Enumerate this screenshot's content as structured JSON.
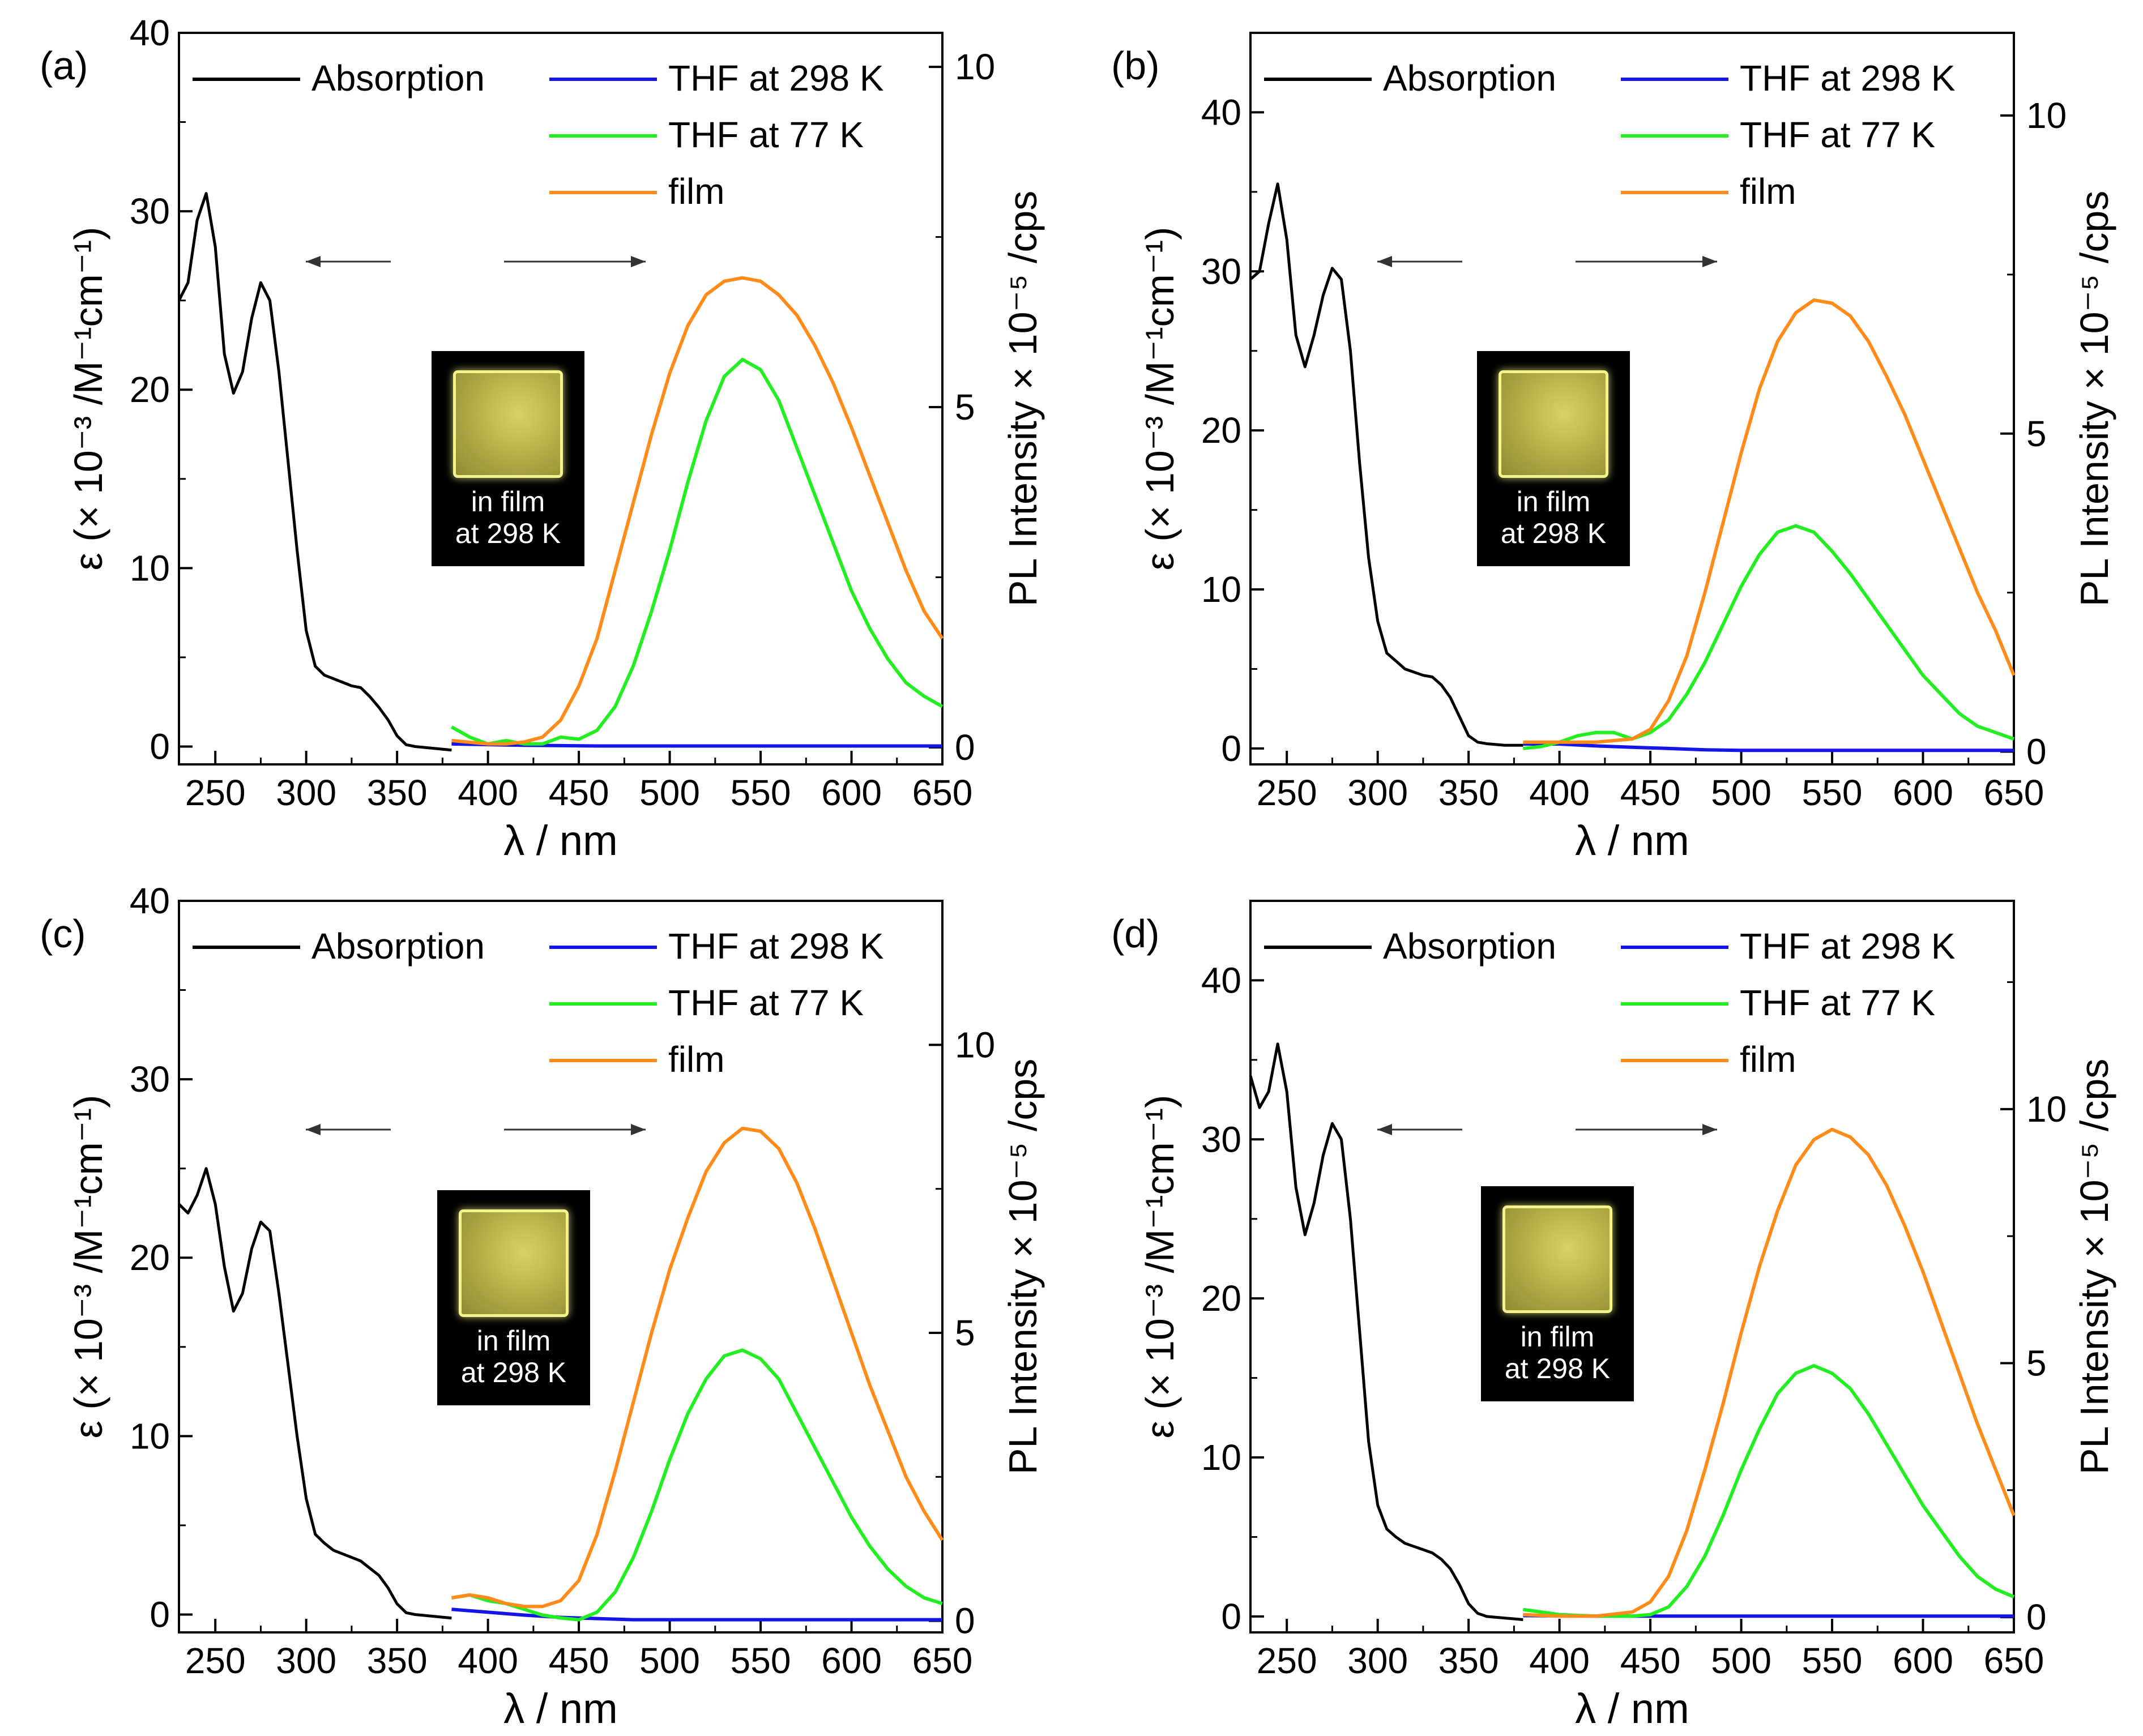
{
  "chart_data": [
    {
      "type": "line",
      "panel_label": "(a)",
      "xlabel": "λ / nm",
      "ylabel_left": "ε (× 10⁻³ /M⁻¹cm⁻¹)",
      "ylabel_right": "PL Intensity × 10⁻⁵ /cps",
      "xlim": [
        230,
        650
      ],
      "ylim_left": [
        -1,
        40
      ],
      "ylim_right": [
        -0.25,
        10.5
      ],
      "x_ticks": [
        250,
        300,
        350,
        400,
        450,
        500,
        550,
        600,
        650
      ],
      "y_left_ticks": [
        0,
        10,
        20,
        30,
        40
      ],
      "y_right_ticks": [
        0,
        5,
        10
      ],
      "legend": [
        "Absorption",
        "THF at 298 K",
        "THF at 77 K",
        "film"
      ],
      "inset_text": [
        "in film",
        "at 298 K"
      ],
      "series": [
        {
          "name": "Absorption",
          "axis": "left",
          "color": "#000000",
          "x": [
            230,
            235,
            240,
            245,
            250,
            255,
            260,
            265,
            270,
            275,
            280,
            285,
            290,
            295,
            300,
            305,
            310,
            315,
            320,
            325,
            330,
            335,
            340,
            345,
            350,
            355,
            360,
            370,
            380
          ],
          "y": [
            25,
            26,
            29.5,
            31,
            28,
            22,
            19.8,
            21,
            24,
            26,
            25,
            21,
            16,
            11,
            6.5,
            4.5,
            4,
            3.8,
            3.6,
            3.4,
            3.3,
            2.8,
            2.2,
            1.5,
            0.6,
            0.1,
            0,
            -0.1,
            -0.2
          ]
        },
        {
          "name": "THF at 298 K",
          "axis": "right",
          "color": "#1515e8",
          "x": [
            380,
            420,
            460,
            500,
            550,
            600,
            650
          ],
          "y": [
            0.05,
            0.03,
            0.02,
            0.02,
            0.02,
            0.02,
            0.02
          ]
        },
        {
          "name": "THF at 77 K",
          "axis": "right",
          "color": "#22ee22",
          "x": [
            380,
            390,
            400,
            410,
            420,
            430,
            440,
            450,
            460,
            470,
            480,
            490,
            500,
            510,
            520,
            530,
            540,
            550,
            560,
            570,
            580,
            590,
            600,
            610,
            620,
            630,
            640,
            650
          ],
          "y": [
            0.3,
            0.15,
            0.05,
            0.1,
            0.05,
            0.05,
            0.15,
            0.12,
            0.25,
            0.6,
            1.2,
            2,
            2.9,
            3.9,
            4.8,
            5.45,
            5.7,
            5.55,
            5.1,
            4.4,
            3.7,
            3.0,
            2.3,
            1.75,
            1.3,
            0.95,
            0.75,
            0.6
          ]
        },
        {
          "name": "film",
          "axis": "right",
          "color": "#ff8c1a",
          "x": [
            380,
            400,
            410,
            420,
            430,
            440,
            450,
            460,
            470,
            480,
            490,
            500,
            510,
            520,
            530,
            540,
            550,
            560,
            570,
            580,
            590,
            600,
            610,
            620,
            630,
            640,
            650
          ],
          "y": [
            0.1,
            0.05,
            0.05,
            0.08,
            0.15,
            0.4,
            0.9,
            1.6,
            2.6,
            3.6,
            4.6,
            5.5,
            6.2,
            6.65,
            6.85,
            6.9,
            6.85,
            6.65,
            6.35,
            5.9,
            5.35,
            4.7,
            4.0,
            3.3,
            2.6,
            2.0,
            1.6
          ]
        }
      ]
    },
    {
      "type": "line",
      "panel_label": "(b)",
      "xlabel": "λ / nm",
      "ylabel_left": "ε (× 10⁻³ /M⁻¹cm⁻¹)",
      "ylabel_right": "PL Intensity × 10⁻⁵ /cps",
      "xlim": [
        230,
        650
      ],
      "ylim_left": [
        -1,
        45
      ],
      "ylim_right": [
        -0.2,
        11.3
      ],
      "x_ticks": [
        250,
        300,
        350,
        400,
        450,
        500,
        550,
        600,
        650
      ],
      "y_left_ticks": [
        0,
        10,
        20,
        30,
        40
      ],
      "y_right_ticks": [
        0,
        5,
        10
      ],
      "legend": [
        "Absorption",
        "THF at 298 K",
        "THF at 77 K",
        "film"
      ],
      "inset_text": [
        "in film",
        "at 298 K"
      ],
      "series": [
        {
          "name": "Absorption",
          "axis": "left",
          "color": "#000000",
          "x": [
            230,
            235,
            240,
            245,
            250,
            255,
            260,
            265,
            270,
            275,
            280,
            285,
            290,
            295,
            300,
            305,
            310,
            315,
            320,
            325,
            330,
            335,
            340,
            345,
            350,
            355,
            360,
            370,
            380
          ],
          "y": [
            29.5,
            30,
            33,
            35.5,
            32,
            26,
            24,
            26,
            28.5,
            30.2,
            29.5,
            25,
            18,
            12,
            8,
            6,
            5.5,
            5,
            4.8,
            4.6,
            4.5,
            4,
            3.2,
            2,
            0.8,
            0.4,
            0.3,
            0.2,
            0.2
          ]
        },
        {
          "name": "THF at 298 K",
          "axis": "right",
          "color": "#1515e8",
          "x": [
            380,
            400,
            420,
            440,
            460,
            480,
            500,
            550,
            600,
            650
          ],
          "y": [
            0.12,
            0.12,
            0.09,
            0.07,
            0.05,
            0.03,
            0.02,
            0.02,
            0.02,
            0.02
          ]
        },
        {
          "name": "THF at 77 K",
          "axis": "right",
          "color": "#22ee22",
          "x": [
            380,
            390,
            400,
            410,
            420,
            430,
            440,
            450,
            460,
            470,
            480,
            490,
            500,
            510,
            520,
            530,
            540,
            550,
            560,
            570,
            580,
            590,
            600,
            610,
            620,
            630,
            640,
            650
          ],
          "y": [
            0.05,
            0.08,
            0.15,
            0.25,
            0.3,
            0.3,
            0.2,
            0.3,
            0.5,
            0.9,
            1.4,
            2.0,
            2.6,
            3.1,
            3.45,
            3.55,
            3.45,
            3.15,
            2.8,
            2.4,
            2.0,
            1.6,
            1.2,
            0.9,
            0.6,
            0.4,
            0.3,
            0.2
          ]
        },
        {
          "name": "film",
          "axis": "right",
          "color": "#ff8c1a",
          "x": [
            380,
            400,
            420,
            440,
            450,
            460,
            470,
            480,
            490,
            500,
            510,
            520,
            530,
            540,
            550,
            560,
            570,
            580,
            590,
            600,
            610,
            620,
            630,
            640,
            650
          ],
          "y": [
            0.15,
            0.15,
            0.15,
            0.2,
            0.35,
            0.8,
            1.5,
            2.5,
            3.6,
            4.7,
            5.7,
            6.45,
            6.9,
            7.1,
            7.05,
            6.85,
            6.45,
            5.9,
            5.3,
            4.6,
            3.9,
            3.2,
            2.5,
            1.9,
            1.2
          ]
        }
      ]
    },
    {
      "type": "line",
      "panel_label": "(c)",
      "xlabel": "λ / nm",
      "ylabel_left": "ε (× 10⁻³ /M⁻¹cm⁻¹)",
      "ylabel_right": "PL Intensity × 10⁻⁵ /cps",
      "xlim": [
        230,
        650
      ],
      "ylim_left": [
        -1,
        40
      ],
      "ylim_right": [
        -0.2,
        12.5
      ],
      "x_ticks": [
        250,
        300,
        350,
        400,
        450,
        500,
        550,
        600,
        650
      ],
      "y_left_ticks": [
        0,
        10,
        20,
        30,
        40
      ],
      "y_right_ticks": [
        0,
        5,
        10
      ],
      "legend": [
        "Absorption",
        "THF at 298 K",
        "THF at 77 K",
        "film"
      ],
      "inset_text": [
        "in film",
        "at 298 K"
      ],
      "series": [
        {
          "name": "Absorption",
          "axis": "left",
          "color": "#000000",
          "x": [
            230,
            235,
            240,
            245,
            250,
            255,
            260,
            265,
            270,
            275,
            280,
            285,
            290,
            295,
            300,
            305,
            310,
            315,
            320,
            325,
            330,
            335,
            340,
            345,
            350,
            355,
            360,
            370,
            380
          ],
          "y": [
            23,
            22.5,
            23.5,
            25,
            23,
            19.5,
            17,
            18,
            20.5,
            22,
            21.5,
            18,
            14,
            10,
            6.5,
            4.5,
            4,
            3.6,
            3.4,
            3.2,
            3,
            2.6,
            2.2,
            1.5,
            0.6,
            0.1,
            0,
            -0.1,
            -0.2
          ]
        },
        {
          "name": "THF at 298 K",
          "axis": "right",
          "color": "#1515e8",
          "x": [
            380,
            400,
            420,
            440,
            460,
            480,
            500,
            550,
            600,
            650
          ],
          "y": [
            0.2,
            0.15,
            0.1,
            0.06,
            0.04,
            0.02,
            0.02,
            0.02,
            0.02,
            0.02
          ]
        },
        {
          "name": "THF at 77 K",
          "axis": "right",
          "color": "#22ee22",
          "x": [
            380,
            390,
            400,
            410,
            420,
            430,
            440,
            450,
            460,
            470,
            480,
            490,
            500,
            510,
            520,
            530,
            540,
            550,
            560,
            570,
            580,
            590,
            600,
            610,
            620,
            630,
            640,
            650
          ],
          "y": [
            0.4,
            0.45,
            0.35,
            0.3,
            0.2,
            0.1,
            0.05,
            0.02,
            0.15,
            0.5,
            1.1,
            1.9,
            2.8,
            3.6,
            4.2,
            4.6,
            4.7,
            4.55,
            4.2,
            3.6,
            3.0,
            2.4,
            1.8,
            1.3,
            0.9,
            0.6,
            0.4,
            0.3
          ]
        },
        {
          "name": "film",
          "axis": "right",
          "color": "#ff8c1a",
          "x": [
            380,
            390,
            400,
            410,
            420,
            430,
            440,
            450,
            460,
            470,
            480,
            490,
            500,
            510,
            520,
            530,
            540,
            550,
            560,
            570,
            580,
            590,
            600,
            610,
            620,
            630,
            640,
            650
          ],
          "y": [
            0.4,
            0.45,
            0.4,
            0.3,
            0.25,
            0.25,
            0.35,
            0.7,
            1.5,
            2.6,
            3.8,
            5.0,
            6.1,
            7.0,
            7.8,
            8.3,
            8.55,
            8.5,
            8.2,
            7.6,
            6.8,
            5.9,
            5.0,
            4.1,
            3.3,
            2.5,
            1.9,
            1.4
          ]
        }
      ]
    },
    {
      "type": "line",
      "panel_label": "(d)",
      "xlabel": "λ / nm",
      "ylabel_left": "ε (× 10⁻³ /M⁻¹cm⁻¹)",
      "ylabel_right": "PL Intensity × 10⁻⁵ /cps",
      "xlim": [
        230,
        650
      ],
      "ylim_left": [
        -1,
        45
      ],
      "ylim_right": [
        -0.3,
        14.1
      ],
      "x_ticks": [
        250,
        300,
        350,
        400,
        450,
        500,
        550,
        600,
        650
      ],
      "y_left_ticks": [
        0,
        10,
        20,
        30,
        40
      ],
      "y_right_ticks": [
        0,
        5,
        10
      ],
      "legend": [
        "Absorption",
        "THF at 298 K",
        "THF at 77 K",
        "film"
      ],
      "inset_text": [
        "in film",
        "at 298 K"
      ],
      "series": [
        {
          "name": "Absorption",
          "axis": "left",
          "color": "#000000",
          "x": [
            230,
            235,
            240,
            245,
            250,
            255,
            260,
            265,
            270,
            275,
            280,
            285,
            290,
            295,
            300,
            305,
            310,
            315,
            320,
            325,
            330,
            335,
            340,
            345,
            350,
            355,
            360,
            370,
            380
          ],
          "y": [
            34,
            32,
            33,
            36,
            33,
            27,
            24,
            26,
            29,
            31,
            30,
            25,
            18,
            11,
            7,
            5.5,
            5,
            4.6,
            4.4,
            4.2,
            4,
            3.6,
            3,
            2,
            0.8,
            0.2,
            0,
            -0.1,
            -0.2
          ]
        },
        {
          "name": "THF at 298 K",
          "axis": "right",
          "color": "#1515e8",
          "x": [
            380,
            420,
            460,
            500,
            550,
            600,
            650
          ],
          "y": [
            0.03,
            0.02,
            0.02,
            0.02,
            0.02,
            0.02,
            0.02
          ]
        },
        {
          "name": "THF at 77 K",
          "axis": "right",
          "color": "#22ee22",
          "x": [
            380,
            400,
            420,
            440,
            450,
            460,
            470,
            480,
            490,
            500,
            510,
            520,
            530,
            540,
            550,
            560,
            570,
            580,
            590,
            600,
            610,
            620,
            630,
            640,
            650
          ],
          "y": [
            0.15,
            0.05,
            0.02,
            0.02,
            0.05,
            0.2,
            0.6,
            1.2,
            2.0,
            2.9,
            3.7,
            4.4,
            4.8,
            4.95,
            4.8,
            4.5,
            4.0,
            3.4,
            2.8,
            2.2,
            1.7,
            1.2,
            0.8,
            0.55,
            0.4
          ]
        },
        {
          "name": "film",
          "axis": "right",
          "color": "#ff8c1a",
          "x": [
            380,
            400,
            420,
            440,
            450,
            460,
            470,
            480,
            490,
            500,
            510,
            520,
            530,
            540,
            550,
            560,
            570,
            580,
            590,
            600,
            610,
            620,
            630,
            640,
            650
          ],
          "y": [
            0.05,
            0.02,
            0.02,
            0.1,
            0.3,
            0.8,
            1.7,
            2.9,
            4.2,
            5.6,
            6.9,
            8.0,
            8.9,
            9.4,
            9.6,
            9.45,
            9.1,
            8.5,
            7.7,
            6.8,
            5.8,
            4.8,
            3.8,
            2.9,
            2.0
          ]
        }
      ]
    }
  ]
}
